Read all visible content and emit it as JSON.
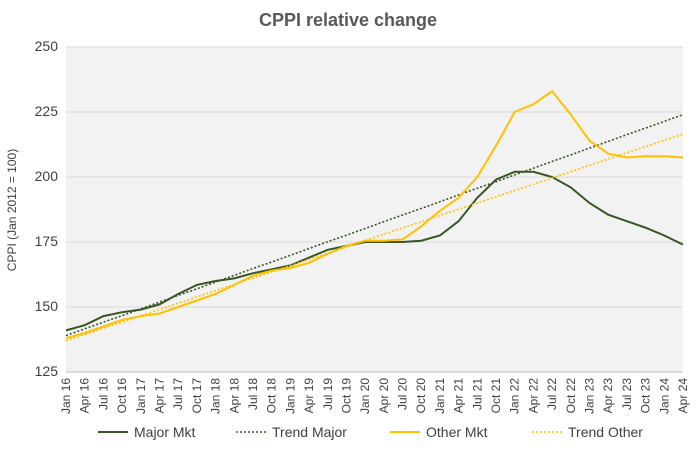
{
  "chart_data": {
    "type": "line",
    "title": "CPPI relative change",
    "y_label": "CPPI (Jan 2012 = 100)",
    "categories": [
      "Jan 16",
      "Apr 16",
      "Jul 16",
      "Oct 16",
      "Jan 17",
      "Apr 17",
      "Jul 17",
      "Oct 17",
      "Jan 18",
      "Apr 18",
      "Jul 18",
      "Oct 18",
      "Jan 19",
      "Apr 19",
      "Jul 19",
      "Oct 19",
      "Jan 20",
      "Apr 20",
      "Jul 20",
      "Oct 20",
      "Jan 21",
      "Apr 21",
      "Jul 21",
      "Oct 21",
      "Jan 22",
      "Apr 22",
      "Jul 22",
      "Oct 22",
      "Jan 23",
      "Apr 23",
      "Jul 23",
      "Oct 23",
      "Jan 24",
      "Apr 24"
    ],
    "series": [
      {
        "name": "Major Mkt",
        "color": "#375623",
        "dash": "solid",
        "values": [
          141,
          143,
          146.5,
          148,
          149,
          151,
          155,
          158.5,
          160,
          161,
          163,
          164.5,
          166,
          169,
          172,
          173.5,
          175,
          175,
          175,
          175.5,
          177.5,
          183,
          192,
          199,
          202,
          202,
          200,
          196,
          190,
          185.5,
          183,
          180.5,
          177.5,
          174
        ]
      },
      {
        "name": "Trend Major",
        "color": "#375623",
        "dash": "dotted",
        "values": [
          139,
          141.6,
          144.2,
          146.7,
          149.3,
          151.9,
          154.5,
          157,
          159.6,
          162.2,
          164.8,
          167.3,
          169.9,
          172.5,
          175.1,
          177.6,
          180.2,
          182.8,
          185.4,
          187.9,
          190.5,
          193.1,
          195.7,
          198.2,
          200.8,
          203.4,
          206,
          208.5,
          211.1,
          213.7,
          216.3,
          218.8,
          221.4,
          224
        ]
      },
      {
        "name": "Other Mkt",
        "color": "#ffc000",
        "dash": "solid",
        "values": [
          138,
          140,
          142.5,
          145,
          146.5,
          147.5,
          150,
          152.5,
          155,
          158.5,
          162,
          164,
          165,
          167,
          170.5,
          173.5,
          175.5,
          175.5,
          176,
          181,
          187,
          192,
          200,
          212,
          225,
          228,
          233,
          224,
          214,
          209,
          207.5,
          208,
          208,
          207.5
        ]
      },
      {
        "name": "Trend Other",
        "color": "#ffc000",
        "dash": "dotted",
        "values": [
          137,
          139.4,
          141.8,
          144.2,
          146.6,
          149,
          151.5,
          153.9,
          156.3,
          158.7,
          161.1,
          163.5,
          165.9,
          168.3,
          170.7,
          173.1,
          175.5,
          178,
          180.4,
          182.8,
          185.2,
          187.6,
          190,
          192.4,
          194.8,
          197.2,
          199.6,
          202,
          204.5,
          206.9,
          209.3,
          211.7,
          214.1,
          216.5
        ]
      }
    ],
    "ylim": [
      125,
      250
    ],
    "yticks": [
      125,
      150,
      175,
      200,
      225,
      250
    ],
    "grid": true,
    "legend": "bottom"
  }
}
